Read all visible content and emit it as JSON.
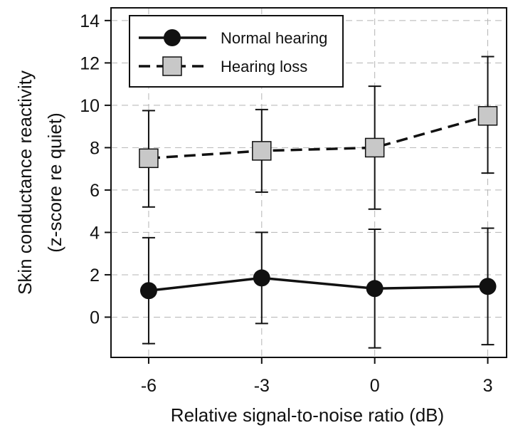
{
  "chart_data": {
    "type": "line",
    "xlabel": "Relative signal-to-noise ratio (dB)",
    "ylabel_lines": [
      "Skin conductance reactivity",
      "(z-score re quiet)"
    ],
    "x": [
      -6,
      -3,
      0,
      3
    ],
    "x_tick_labels": [
      "-6",
      "-3",
      "0",
      "3"
    ],
    "xlim": [
      -7,
      3.5
    ],
    "ylim": [
      -1.9,
      14.6
    ],
    "y_ticks": [
      0,
      2,
      4,
      6,
      8,
      10,
      12,
      14
    ],
    "y_tick_labels": [
      "0",
      "2",
      "4",
      "6",
      "8",
      "10",
      "12",
      "14"
    ],
    "grid": true,
    "legend": "top-left",
    "series": [
      {
        "name": "Normal hearing",
        "marker": "circle",
        "line_style": "solid",
        "color": "#111111",
        "y": [
          1.25,
          1.85,
          1.35,
          1.45
        ],
        "err_low": [
          -1.25,
          -0.3,
          -1.45,
          -1.3
        ],
        "err_high": [
          3.75,
          4.0,
          4.15,
          4.2
        ]
      },
      {
        "name": "Hearing loss",
        "marker": "square",
        "line_style": "dashed",
        "color": "#111111",
        "fill": "#c8c8c8",
        "y": [
          7.5,
          7.85,
          8.0,
          9.5
        ],
        "err_low": [
          5.2,
          5.9,
          5.1,
          6.8
        ],
        "err_high": [
          9.75,
          9.8,
          10.9,
          12.3
        ]
      }
    ]
  }
}
